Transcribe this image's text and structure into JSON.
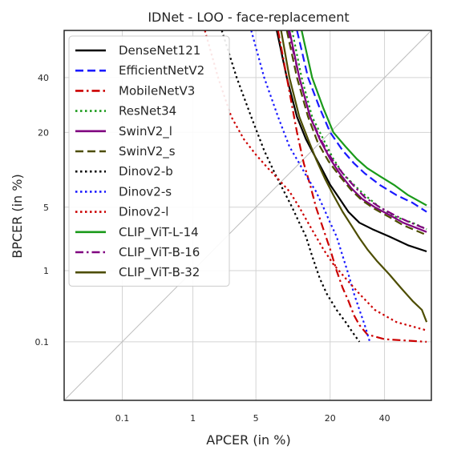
{
  "chart_data": {
    "type": "line",
    "title": "IDNet - LOO - face-replacement",
    "xlabel": "APCER (in %)",
    "ylabel": "BPCER (in %)",
    "xscale": "probit",
    "yscale": "probit",
    "xlim": [
      0.01,
      60
    ],
    "ylim": [
      0.01,
      60
    ],
    "xticks": [
      {
        "value": 0.1,
        "label": "0.1"
      },
      {
        "value": 1,
        "label": "1"
      },
      {
        "value": 5,
        "label": "5"
      },
      {
        "value": 20,
        "label": "20"
      },
      {
        "value": 40,
        "label": "40"
      }
    ],
    "yticks": [
      {
        "value": 0.1,
        "label": "0.1"
      },
      {
        "value": 1,
        "label": "1"
      },
      {
        "value": 5,
        "label": "5"
      },
      {
        "value": 20,
        "label": "20"
      },
      {
        "value": 40,
        "label": "40"
      }
    ],
    "grid": true,
    "reference_diagonal": true,
    "legend_position": "top-left",
    "series": [
      {
        "name": "DenseNet121",
        "color": "#000000",
        "dash": "solid",
        "x": [
          7.8,
          9.5,
          11.5,
          13.5,
          15.5,
          17.5,
          20,
          23,
          26,
          30,
          35,
          42,
          50,
          58
        ],
        "y": [
          60,
          40,
          25,
          18,
          14,
          11,
          8,
          6,
          4.5,
          3.5,
          3.0,
          2.5,
          2.0,
          1.7
        ]
      },
      {
        "name": "EfficientNetV2",
        "color": "#1a1aff",
        "dash": "dash",
        "x": [
          11.5,
          14,
          17,
          20,
          24,
          28,
          32,
          38,
          45,
          52,
          58
        ],
        "y": [
          60,
          40,
          28,
          20,
          15,
          12,
          10,
          8,
          6.5,
          5.5,
          4.5
        ]
      },
      {
        "name": "MobileNetV3",
        "color": "#cc0000",
        "dash": "dashdot",
        "x": [
          8.0,
          9.5,
          11.5,
          13,
          14.5,
          16,
          18,
          20,
          22,
          24,
          26,
          28,
          30,
          33,
          40,
          58
        ],
        "y": [
          60,
          40,
          20,
          12,
          8,
          5,
          3,
          1.8,
          1.0,
          0.6,
          0.4,
          0.25,
          0.18,
          0.13,
          0.11,
          0.1
        ]
      },
      {
        "name": "ResNet34",
        "color": "#1a9a1a",
        "dash": "dot",
        "x": [
          10.5,
          12.5,
          15,
          18,
          21,
          24,
          28,
          32,
          38,
          45,
          52,
          58
        ],
        "y": [
          60,
          40,
          25,
          18,
          13,
          10,
          8,
          6.5,
          5.0,
          4.0,
          3.5,
          3.0
        ]
      },
      {
        "name": "SwinV2_l",
        "color": "#800080",
        "dash": "solid",
        "x": [
          10,
          12,
          14.5,
          17,
          20,
          23,
          27,
          31,
          36,
          42,
          48,
          58
        ],
        "y": [
          60,
          40,
          25,
          18,
          13,
          10,
          7.5,
          6,
          5,
          4.2,
          3.5,
          2.8
        ]
      },
      {
        "name": "SwinV2_s",
        "color": "#4d4d00",
        "dash": "dash",
        "x": [
          9.5,
          11.5,
          14,
          16.5,
          19.5,
          23,
          27,
          31,
          36,
          42,
          48,
          58
        ],
        "y": [
          60,
          40,
          25,
          17,
          12.5,
          9.5,
          7.2,
          5.8,
          4.8,
          4.0,
          3.3,
          2.6
        ]
      },
      {
        "name": "Dinov2-b",
        "color": "#000000",
        "dash": "dot",
        "x": [
          2.2,
          3.2,
          4.5,
          6.0,
          7.5,
          9.0,
          10.5,
          12,
          13.5,
          15,
          17,
          19,
          22,
          25,
          28,
          30
        ],
        "y": [
          60,
          40,
          25,
          15,
          10,
          7,
          5,
          3.5,
          2.5,
          1.5,
          0.8,
          0.5,
          0.3,
          0.2,
          0.13,
          0.1
        ]
      },
      {
        "name": "Dinov2-s",
        "color": "#1a1aff",
        "dash": "dot",
        "x": [
          4.5,
          6,
          8,
          10,
          12,
          14,
          16,
          18,
          20,
          22,
          24,
          26,
          28,
          30,
          32,
          34
        ],
        "y": [
          60,
          40,
          25,
          16,
          12,
          9,
          7,
          5,
          3.5,
          2.5,
          1.5,
          0.9,
          0.5,
          0.3,
          0.18,
          0.1
        ]
      },
      {
        "name": "Dinov2-l",
        "color": "#cc0000",
        "dash": "dot",
        "x": [
          1.4,
          2.0,
          2.8,
          3.8,
          5.0,
          6.5,
          8,
          10,
          12,
          14,
          16,
          18,
          21,
          25,
          30,
          36,
          45,
          58
        ],
        "y": [
          60,
          40,
          25,
          18,
          14,
          11,
          9,
          7,
          5,
          3.5,
          2.5,
          1.8,
          1.2,
          0.8,
          0.5,
          0.3,
          0.2,
          0.15
        ]
      },
      {
        "name": "CLIP_ViT-L-14",
        "color": "#1a9a1a",
        "dash": "solid",
        "x": [
          12.5,
          15,
          18,
          21,
          25,
          29,
          33,
          38,
          44,
          50,
          58
        ],
        "y": [
          60,
          40,
          28,
          20,
          16,
          13,
          11,
          9.5,
          8,
          6.5,
          5.2
        ]
      },
      {
        "name": "CLIP_ViT-B-16",
        "color": "#800080",
        "dash": "dashdot",
        "x": [
          9.8,
          12,
          14.5,
          17.5,
          20.5,
          24,
          28,
          32,
          38,
          44,
          50,
          58
        ],
        "y": [
          60,
          40,
          25,
          17.5,
          13,
          10,
          7.8,
          6.2,
          5.0,
          4.2,
          3.6,
          3.0
        ]
      },
      {
        "name": "CLIP_ViT-B-32",
        "color": "#4d4d00",
        "dash": "solid",
        "x": [
          8.5,
          10,
          12,
          14,
          16,
          18.5,
          21,
          24,
          27,
          30,
          33,
          37,
          42,
          47,
          52,
          56,
          58
        ],
        "y": [
          60,
          40,
          25,
          18,
          13,
          9,
          6.5,
          4.5,
          3.3,
          2.4,
          1.8,
          1.3,
          0.9,
          0.6,
          0.4,
          0.3,
          0.2
        ]
      }
    ]
  }
}
